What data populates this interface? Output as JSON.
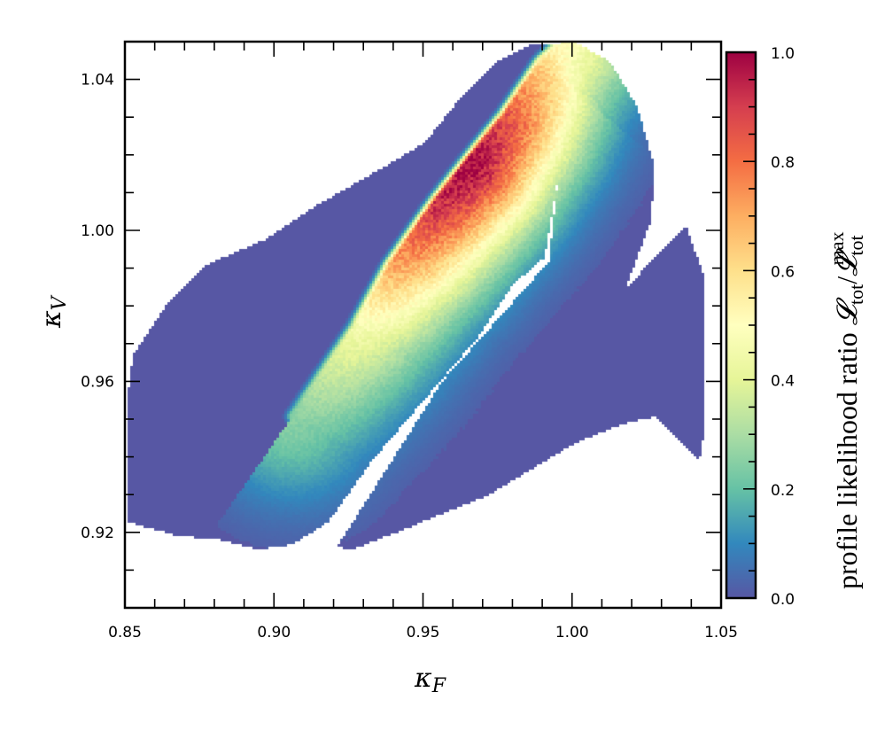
{
  "chart_data": {
    "type": "scatter",
    "description_kind": "profile likelihood scan colored by likelihood ratio",
    "xlabel": "κ",
    "xlabel_sub": "F",
    "ylabel": "κ",
    "ylabel_sub": "V",
    "xlim": [
      0.85,
      1.05
    ],
    "ylim": [
      0.9,
      1.05
    ],
    "x_major_ticks": [
      0.85,
      0.9,
      0.95,
      1.0,
      1.05
    ],
    "x_tick_labels": [
      "0.85",
      "0.90",
      "0.95",
      "1.00",
      "1.05"
    ],
    "x_minor_step": 0.01,
    "y_major_ticks": [
      0.92,
      0.96,
      1.0,
      1.04
    ],
    "y_tick_labels": [
      "0.92",
      "0.96",
      "1.00",
      "1.04"
    ],
    "y_minor_step": 0.01,
    "colorbar": {
      "label_prefix": "profile likelihood ratio ",
      "label_symbol": "𝓛",
      "label_sub": "tot",
      "label_slash": "/",
      "label_sup": "max",
      "range": [
        0,
        1
      ],
      "ticks": [
        0.0,
        0.2,
        0.4,
        0.6,
        0.8,
        1.0
      ],
      "tick_labels": [
        "0.0",
        "0.2",
        "0.4",
        "0.6",
        "0.8",
        "1.0"
      ],
      "minor_step": 0.05,
      "colormap": "Spectral_r",
      "stops": [
        "#5757a4",
        "#3288bd",
        "#66c2a5",
        "#abdda4",
        "#e6f598",
        "#ffffbf",
        "#fee08b",
        "#fdae61",
        "#f46d43",
        "#d53e4f",
        "#9e0142"
      ]
    },
    "regions": [
      {
        "name": "upper-left band",
        "points": [
          [
            0.8506,
            0.9542
          ],
          [
            0.8527,
            0.9671
          ],
          [
            0.8646,
            0.9812
          ],
          [
            0.8765,
            0.9906
          ],
          [
            0.8973,
            0.9976
          ],
          [
            0.9151,
            1.007
          ],
          [
            0.9359,
            1.0163
          ],
          [
            0.9508,
            1.0234
          ],
          [
            0.9626,
            1.0351
          ],
          [
            0.9745,
            1.0445
          ],
          [
            0.9864,
            1.0492
          ],
          [
            1.0012,
            1.0499
          ],
          [
            1.0042,
            1.0468
          ],
          [
            1.0012,
            1.0327
          ],
          [
            0.9953,
            1.014
          ],
          [
            0.9909,
            0.9929
          ],
          [
            0.9805,
            0.9859
          ],
          [
            0.9686,
            0.9718
          ],
          [
            0.9508,
            0.9554
          ],
          [
            0.9329,
            0.939
          ],
          [
            0.9181,
            0.9226
          ],
          [
            0.9062,
            0.9167
          ],
          [
            0.8943,
            0.9155
          ],
          [
            0.8824,
            0.9179
          ],
          [
            0.8675,
            0.9191
          ],
          [
            0.8512,
            0.9226
          ]
        ]
      },
      {
        "name": "lower-right band",
        "points": [
          [
            0.921,
            0.916
          ],
          [
            0.9566,
            0.9601
          ],
          [
            0.9804,
            0.9812
          ],
          [
            0.9923,
            0.9917
          ],
          [
            0.9953,
            1.014
          ],
          [
            1.0012,
            1.0499
          ],
          [
            1.013,
            1.0445
          ],
          [
            1.022,
            1.0327
          ],
          [
            1.0279,
            1.0163
          ],
          [
            1.0264,
            1.0023
          ],
          [
            1.0175,
            0.9835
          ],
          [
            1.013,
            0.9807
          ],
          [
            1.0383,
            1.0011
          ],
          [
            1.0442,
            0.9882
          ],
          [
            1.0448,
            0.9484
          ],
          [
            1.0427,
            0.939
          ],
          [
            1.0279,
            0.9507
          ],
          [
            1.016,
            0.9484
          ],
          [
            1.0012,
            0.9437
          ],
          [
            0.9715,
            0.9296
          ],
          [
            0.9418,
            0.9202
          ],
          [
            0.9269,
            0.9155
          ]
        ]
      }
    ],
    "likelihood_ridge": [
      {
        "kF": 0.9062,
        "kV": 0.9507,
        "ratio": 0.25
      },
      {
        "kF": 0.9269,
        "kV": 0.9741,
        "ratio": 0.45
      },
      {
        "kF": 0.9388,
        "kV": 0.9906,
        "ratio": 0.7
      },
      {
        "kF": 0.9537,
        "kV": 1.007,
        "ratio": 0.92
      },
      {
        "kF": 0.9655,
        "kV": 1.0187,
        "ratio": 1.0
      },
      {
        "kF": 0.9774,
        "kV": 1.0304,
        "ratio": 0.85
      },
      {
        "kF": 0.9893,
        "kV": 1.0445,
        "ratio": 0.62
      },
      {
        "kF": 0.9953,
        "kV": 1.0492,
        "ratio": 0.5
      }
    ]
  }
}
